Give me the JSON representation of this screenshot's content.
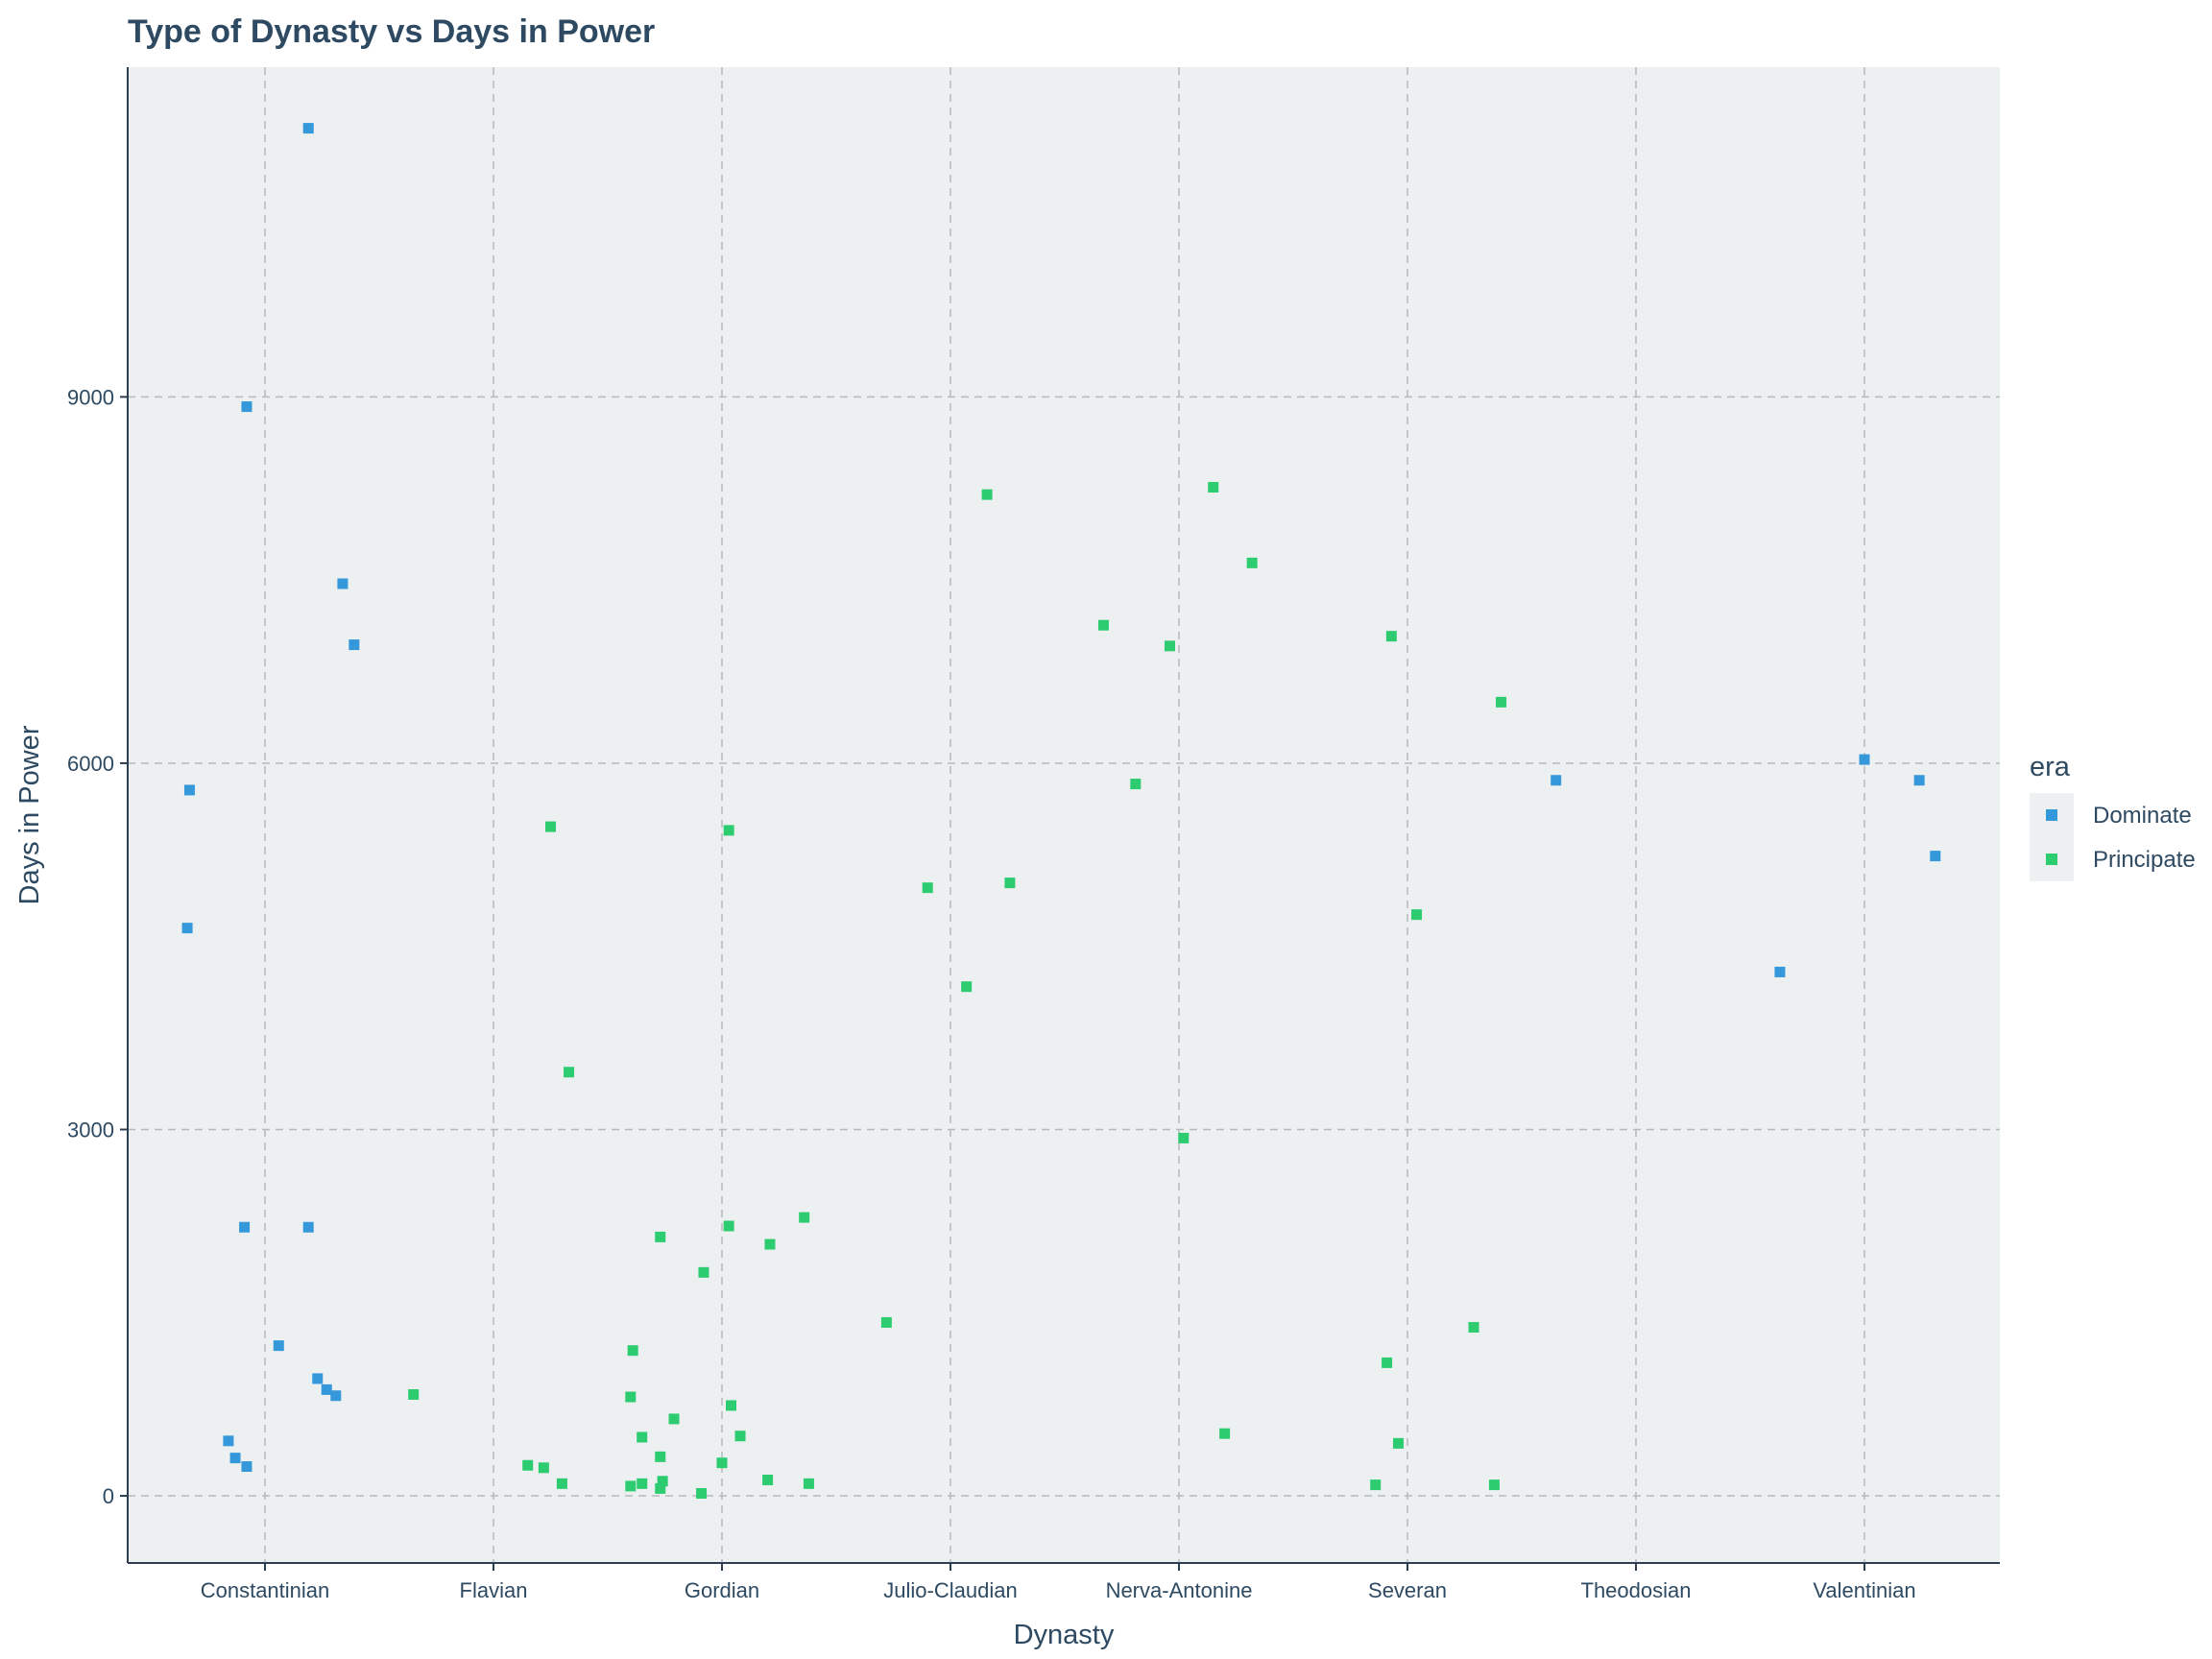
{
  "chart_data": {
    "type": "scatter",
    "title": "Type of Dynasty vs Days in Power",
    "xlabel": "Dynasty",
    "ylabel": "Days in Power",
    "categories": [
      "Constantinian",
      "Flavian",
      "Gordian",
      "Julio-Claudian",
      "Nerva-Antonine",
      "Severan",
      "Theodosian",
      "Valentinian"
    ],
    "y_ticks": [
      0,
      3000,
      6000,
      9000
    ],
    "ylim": [
      -550,
      11700
    ],
    "grid": true,
    "legend": {
      "title": "era",
      "position": "right"
    },
    "series": [
      {
        "name": "Dominate",
        "color": "#3498db",
        "points": [
          {
            "x": 0.19,
            "y": 11200
          },
          {
            "x": -0.08,
            "y": 8920
          },
          {
            "x": 0.34,
            "y": 7470
          },
          {
            "x": 0.39,
            "y": 6970
          },
          {
            "x": -0.33,
            "y": 5780
          },
          {
            "x": -0.34,
            "y": 4650
          },
          {
            "x": -0.09,
            "y": 2200
          },
          {
            "x": 0.19,
            "y": 2200
          },
          {
            "x": 0.06,
            "y": 1230
          },
          {
            "x": 0.23,
            "y": 960
          },
          {
            "x": 0.27,
            "y": 870
          },
          {
            "x": 0.31,
            "y": 820
          },
          {
            "x": -0.16,
            "y": 450
          },
          {
            "x": -0.13,
            "y": 310
          },
          {
            "x": -0.08,
            "y": 240
          },
          {
            "x": 5.65,
            "y": 5860
          },
          {
            "x": 6.63,
            "y": 4290
          },
          {
            "x": 7.0,
            "y": 6030
          },
          {
            "x": 7.24,
            "y": 5860
          },
          {
            "x": 7.31,
            "y": 5240
          }
        ]
      },
      {
        "name": "Principate",
        "color": "#2ecc71",
        "points": [
          {
            "x": 0.65,
            "y": 830
          },
          {
            "x": 1.25,
            "y": 5480
          },
          {
            "x": 1.33,
            "y": 3470
          },
          {
            "x": 1.15,
            "y": 250
          },
          {
            "x": 1.22,
            "y": 230
          },
          {
            "x": 1.3,
            "y": 100
          },
          {
            "x": 1.61,
            "y": 1190
          },
          {
            "x": 1.6,
            "y": 810
          },
          {
            "x": 1.65,
            "y": 480
          },
          {
            "x": 1.6,
            "y": 80
          },
          {
            "x": 1.65,
            "y": 100
          },
          {
            "x": 1.73,
            "y": 60
          },
          {
            "x": 1.74,
            "y": 120
          },
          {
            "x": 1.73,
            "y": 320
          },
          {
            "x": 1.79,
            "y": 630
          },
          {
            "x": 1.73,
            "y": 2120
          },
          {
            "x": 1.92,
            "y": 1830
          },
          {
            "x": 1.91,
            "y": 20
          },
          {
            "x": 2.0,
            "y": 270
          },
          {
            "x": 2.03,
            "y": 2210
          },
          {
            "x": 2.03,
            "y": 5450
          },
          {
            "x": 2.04,
            "y": 740
          },
          {
            "x": 2.08,
            "y": 490
          },
          {
            "x": 2.2,
            "y": 130
          },
          {
            "x": 2.21,
            "y": 2060
          },
          {
            "x": 2.36,
            "y": 2280
          },
          {
            "x": 2.38,
            "y": 100
          },
          {
            "x": 2.72,
            "y": 1420
          },
          {
            "x": 2.9,
            "y": 4980
          },
          {
            "x": 3.07,
            "y": 4170
          },
          {
            "x": 3.16,
            "y": 8200
          },
          {
            "x": 3.26,
            "y": 5020
          },
          {
            "x": 3.67,
            "y": 7130
          },
          {
            "x": 3.81,
            "y": 5830
          },
          {
            "x": 3.96,
            "y": 6960
          },
          {
            "x": 4.02,
            "y": 2930
          },
          {
            "x": 4.15,
            "y": 8260
          },
          {
            "x": 4.2,
            "y": 510
          },
          {
            "x": 4.32,
            "y": 7640
          },
          {
            "x": 4.93,
            "y": 7040
          },
          {
            "x": 4.91,
            "y": 1090
          },
          {
            "x": 4.96,
            "y": 430
          },
          {
            "x": 4.86,
            "y": 90
          },
          {
            "x": 5.04,
            "y": 4760
          },
          {
            "x": 5.29,
            "y": 1380
          },
          {
            "x": 5.38,
            "y": 90
          },
          {
            "x": 5.41,
            "y": 6500
          }
        ]
      }
    ]
  }
}
